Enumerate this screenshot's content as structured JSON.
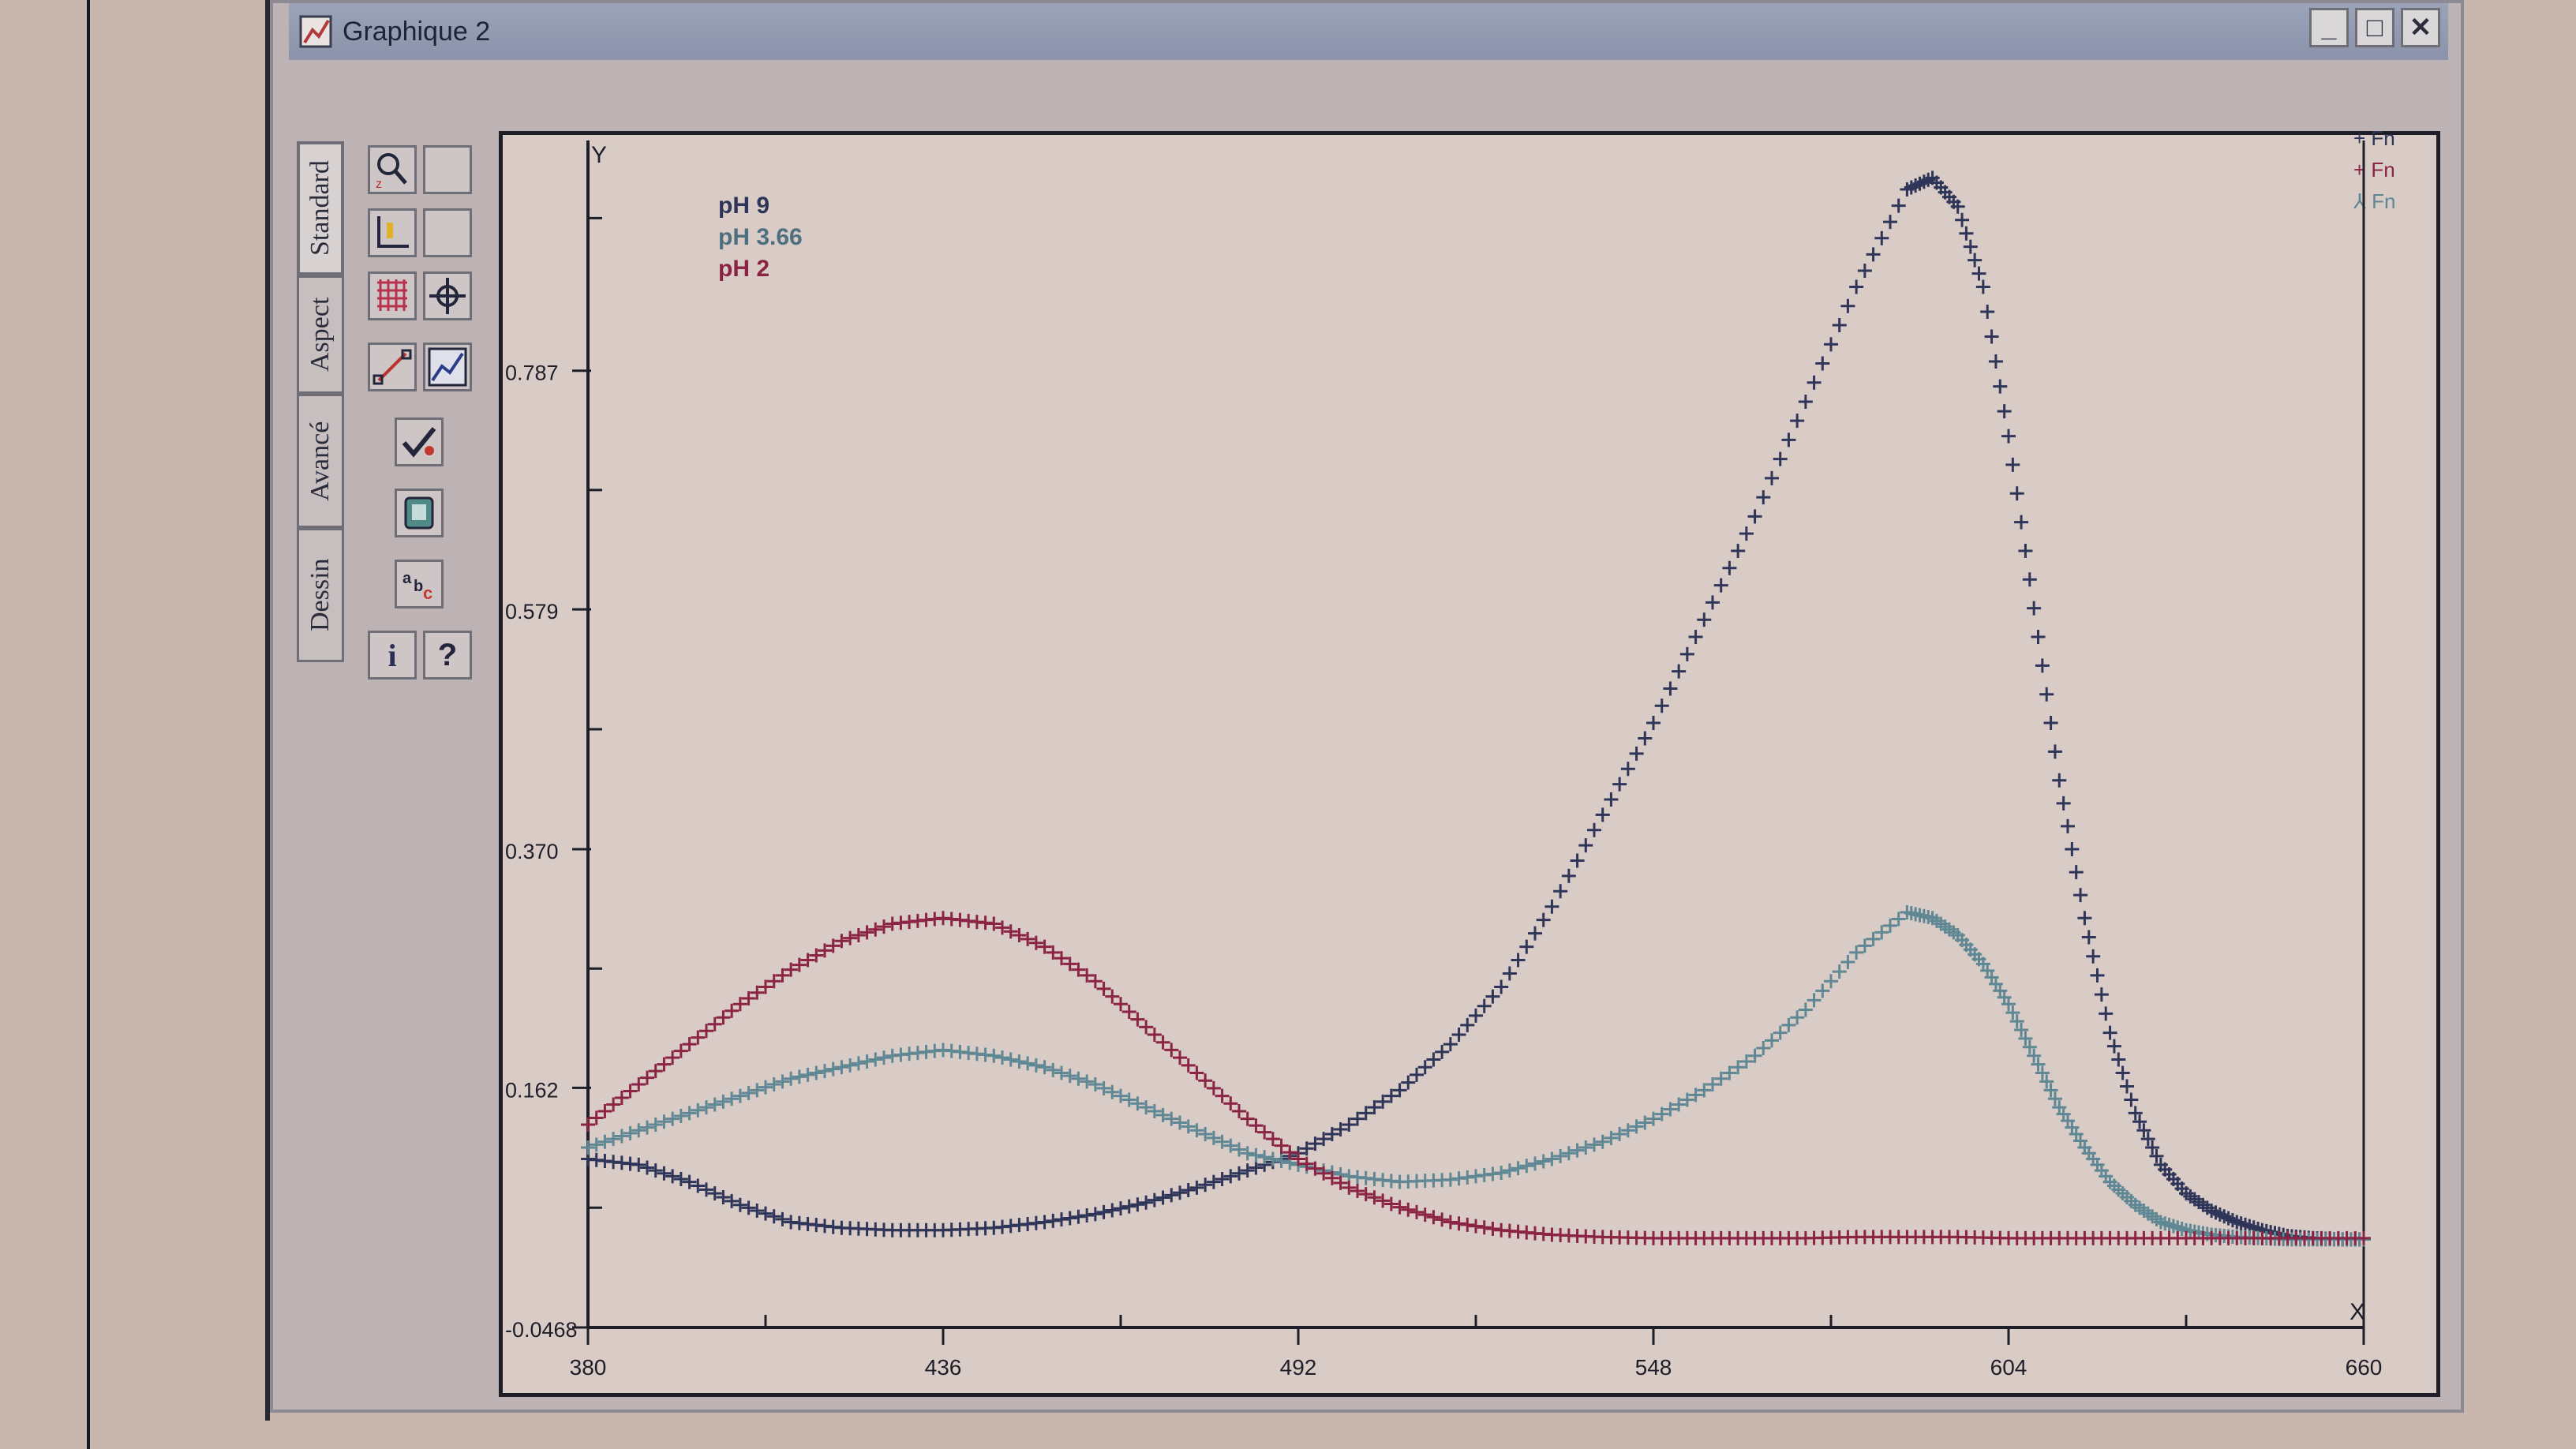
{
  "window": {
    "title": "Graphique 2"
  },
  "tabs": [
    {
      "label": "Standard",
      "active": true
    },
    {
      "label": "Aspect",
      "active": false
    },
    {
      "label": "Avancé",
      "active": false
    },
    {
      "label": "Dessin",
      "active": false
    }
  ],
  "tool_icons": [
    "zoom-icon",
    "blank-tool-icon",
    "axis-scale-icon",
    "blank-tool-icon",
    "grid-icon",
    "crosshair-icon",
    "line-tool-icon",
    "chart-format-icon",
    "validate-icon",
    "record-icon",
    "text-label-icon",
    "info-icon",
    "help-icon"
  ],
  "help_glyph": "?",
  "info_glyph": "i",
  "legend": [
    {
      "label": "pH 9",
      "color": "#2e3558"
    },
    {
      "label": "pH 3.66",
      "color": "#4d6f7e"
    },
    {
      "label": "pH 2",
      "color": "#8a2344"
    }
  ],
  "fn_legend": [
    {
      "label": "Fn",
      "color": "#2e3558",
      "marker": "+"
    },
    {
      "label": "Fn",
      "color": "#8a2344",
      "marker": "+"
    },
    {
      "label": "Fn",
      "color": "#5f8794",
      "marker": "⅄"
    }
  ],
  "chart_data": {
    "type": "scatter",
    "xlabel": "X",
    "ylabel": "Y",
    "xlim": [
      380,
      660
    ],
    "ylim": [
      -0.0468,
      1.0
    ],
    "x_ticks": [
      "380",
      "436",
      "492",
      "548",
      "604",
      "660"
    ],
    "y_ticks": [
      "-0.0468",
      "0.162",
      "0.370",
      "0.579",
      "0.787"
    ],
    "y_tick_values": [
      -0.0468,
      0.162,
      0.37,
      0.579,
      0.787
    ],
    "series": [
      {
        "name": "pH 9",
        "color": "#2e3558",
        "marker": "+",
        "x": [
          380,
          388,
          396,
          404,
          412,
          420,
          428,
          436,
          444,
          452,
          460,
          468,
          476,
          484,
          492,
          500,
          508,
          516,
          524,
          532,
          540,
          548,
          556,
          564,
          572,
          580,
          588,
          592,
          596,
          600,
          604,
          608,
          612,
          616,
          620,
          624,
          628,
          632,
          636,
          640,
          644,
          648,
          652,
          656,
          660
        ],
        "y": [
          0.1,
          0.095,
          0.08,
          0.06,
          0.045,
          0.04,
          0.038,
          0.038,
          0.04,
          0.045,
          0.052,
          0.062,
          0.075,
          0.09,
          0.105,
          0.13,
          0.16,
          0.2,
          0.25,
          0.32,
          0.4,
          0.48,
          0.57,
          0.66,
          0.76,
          0.86,
          0.945,
          0.955,
          0.93,
          0.86,
          0.73,
          0.58,
          0.43,
          0.31,
          0.21,
          0.14,
          0.095,
          0.07,
          0.055,
          0.045,
          0.038,
          0.033,
          0.031,
          0.03,
          0.03
        ]
      },
      {
        "name": "pH 3.66",
        "color": "#5f8794",
        "marker": "+",
        "x": [
          380,
          388,
          396,
          404,
          412,
          420,
          428,
          436,
          444,
          452,
          460,
          468,
          476,
          484,
          492,
          500,
          508,
          516,
          524,
          532,
          540,
          548,
          556,
          564,
          572,
          580,
          588,
          592,
          596,
          600,
          604,
          608,
          612,
          616,
          620,
          624,
          628,
          632,
          636,
          640,
          644,
          648,
          652,
          656,
          660
        ],
        "y": [
          0.11,
          0.125,
          0.14,
          0.155,
          0.17,
          0.18,
          0.19,
          0.195,
          0.19,
          0.18,
          0.165,
          0.145,
          0.125,
          0.105,
          0.095,
          0.085,
          0.08,
          0.082,
          0.088,
          0.1,
          0.115,
          0.135,
          0.16,
          0.19,
          0.23,
          0.28,
          0.315,
          0.31,
          0.295,
          0.27,
          0.235,
          0.19,
          0.145,
          0.11,
          0.08,
          0.06,
          0.045,
          0.038,
          0.034,
          0.032,
          0.031,
          0.03,
          0.03,
          0.03,
          0.03
        ]
      },
      {
        "name": "pH 2",
        "color": "#8a2344",
        "marker": "+",
        "x": [
          380,
          388,
          396,
          404,
          412,
          420,
          428,
          436,
          444,
          452,
          460,
          468,
          476,
          484,
          492,
          500,
          508,
          516,
          524,
          532,
          540,
          548,
          556,
          564,
          572,
          580,
          588,
          596,
          604,
          612,
          620,
          628,
          636,
          644,
          652,
          660
        ],
        "y": [
          0.13,
          0.165,
          0.2,
          0.235,
          0.265,
          0.29,
          0.305,
          0.31,
          0.305,
          0.285,
          0.255,
          0.215,
          0.175,
          0.135,
          0.1,
          0.075,
          0.058,
          0.045,
          0.038,
          0.034,
          0.032,
          0.031,
          0.031,
          0.031,
          0.031,
          0.032,
          0.032,
          0.032,
          0.031,
          0.031,
          0.031,
          0.031,
          0.031,
          0.031,
          0.031,
          0.031
        ]
      }
    ]
  }
}
